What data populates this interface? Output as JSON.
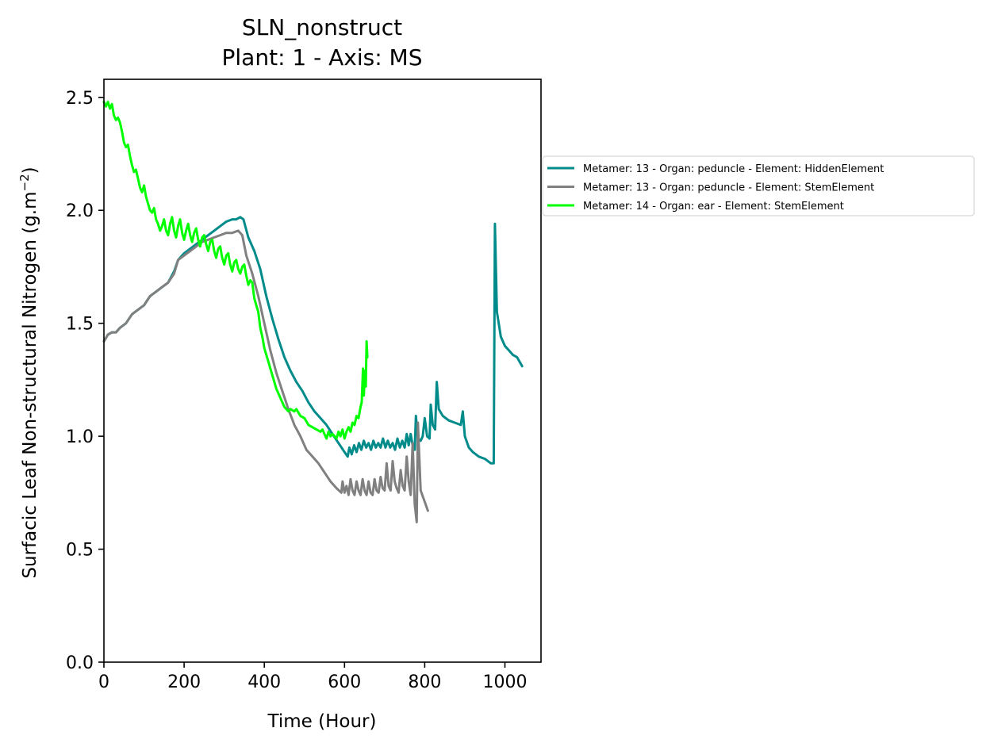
{
  "chart_data": {
    "type": "line",
    "title": "SLN_nonstruct",
    "subtitle": "Plant: 1 - Axis: MS",
    "xlabel": "Time (Hour)",
    "ylabel": "Surfacic Leaf Non-structural Nitrogen (g.m",
    "ylabel_superscript": "−2",
    "ylabel_suffix": ")",
    "xlim": [
      0,
      1090
    ],
    "ylim": [
      0,
      2.58
    ],
    "xticks": [
      0,
      200,
      400,
      600,
      800,
      1000
    ],
    "xtick_labels": [
      "0",
      "200",
      "400",
      "600",
      "800",
      "1000"
    ],
    "yticks": [
      0,
      0.5,
      1.0,
      1.5,
      2.0,
      2.5
    ],
    "ytick_labels": [
      "0.0",
      "0.5",
      "1.0",
      "1.5",
      "2.0",
      "2.5"
    ],
    "legend_position": "outside-right",
    "series": [
      {
        "name": "Metamer: 13 - Organ: peduncle - Element: HiddenElement",
        "color": "#008b8b",
        "points": [
          [
            0,
            1.42
          ],
          [
            10,
            1.45
          ],
          [
            20,
            1.46
          ],
          [
            30,
            1.46
          ],
          [
            40,
            1.48
          ],
          [
            55,
            1.5
          ],
          [
            70,
            1.54
          ],
          [
            85,
            1.56
          ],
          [
            100,
            1.58
          ],
          [
            115,
            1.62
          ],
          [
            130,
            1.64
          ],
          [
            145,
            1.66
          ],
          [
            160,
            1.68
          ],
          [
            175,
            1.73
          ],
          [
            185,
            1.78
          ],
          [
            200,
            1.81
          ],
          [
            215,
            1.83
          ],
          [
            230,
            1.85
          ],
          [
            245,
            1.87
          ],
          [
            260,
            1.89
          ],
          [
            275,
            1.91
          ],
          [
            290,
            1.93
          ],
          [
            305,
            1.95
          ],
          [
            320,
            1.96
          ],
          [
            330,
            1.96
          ],
          [
            340,
            1.97
          ],
          [
            348,
            1.96
          ],
          [
            360,
            1.88
          ],
          [
            375,
            1.82
          ],
          [
            390,
            1.74
          ],
          [
            405,
            1.62
          ],
          [
            420,
            1.52
          ],
          [
            435,
            1.43
          ],
          [
            450,
            1.35
          ],
          [
            465,
            1.29
          ],
          [
            480,
            1.24
          ],
          [
            495,
            1.2
          ],
          [
            510,
            1.15
          ],
          [
            525,
            1.11
          ],
          [
            540,
            1.08
          ],
          [
            555,
            1.05
          ],
          [
            570,
            1.01
          ],
          [
            585,
            0.97
          ],
          [
            600,
            0.93
          ],
          [
            608,
            0.91
          ],
          [
            612,
            0.95
          ],
          [
            618,
            0.92
          ],
          [
            624,
            0.96
          ],
          [
            630,
            0.93
          ],
          [
            636,
            0.97
          ],
          [
            642,
            0.94
          ],
          [
            648,
            0.98
          ],
          [
            654,
            0.95
          ],
          [
            660,
            0.97
          ],
          [
            666,
            0.94
          ],
          [
            672,
            0.98
          ],
          [
            678,
            0.95
          ],
          [
            684,
            0.97
          ],
          [
            690,
            0.95
          ],
          [
            696,
            0.99
          ],
          [
            702,
            0.95
          ],
          [
            708,
            0.98
          ],
          [
            714,
            0.95
          ],
          [
            720,
            0.97
          ],
          [
            726,
            0.94
          ],
          [
            732,
            0.99
          ],
          [
            738,
            0.95
          ],
          [
            744,
            0.98
          ],
          [
            750,
            0.95
          ],
          [
            755,
            1.01
          ],
          [
            760,
            0.96
          ],
          [
            765,
            1.01
          ],
          [
            770,
            0.96
          ],
          [
            775,
            0.94
          ],
          [
            778,
            1.09
          ],
          [
            783,
            0.99
          ],
          [
            790,
            0.98
          ],
          [
            795,
            1.0
          ],
          [
            800,
            1.08
          ],
          [
            806,
            1.0
          ],
          [
            812,
            0.99
          ],
          [
            815,
            1.14
          ],
          [
            820,
            1.05
          ],
          [
            826,
            1.03
          ],
          [
            830,
            1.24
          ],
          [
            835,
            1.12
          ],
          [
            845,
            1.09
          ],
          [
            860,
            1.07
          ],
          [
            875,
            1.06
          ],
          [
            890,
            1.05
          ],
          [
            895,
            1.11
          ],
          [
            900,
            1.0
          ],
          [
            910,
            0.95
          ],
          [
            920,
            0.93
          ],
          [
            935,
            0.91
          ],
          [
            950,
            0.9
          ],
          [
            965,
            0.88
          ],
          [
            972,
            0.88
          ],
          [
            975,
            1.94
          ],
          [
            980,
            1.55
          ],
          [
            990,
            1.44
          ],
          [
            1000,
            1.4
          ],
          [
            1010,
            1.38
          ],
          [
            1020,
            1.36
          ],
          [
            1030,
            1.35
          ],
          [
            1043,
            1.31
          ]
        ]
      },
      {
        "name": "Metamer: 13 - Organ: peduncle - Element: StemElement",
        "color": "#808080",
        "points": [
          [
            0,
            1.42
          ],
          [
            10,
            1.45
          ],
          [
            20,
            1.46
          ],
          [
            30,
            1.46
          ],
          [
            40,
            1.48
          ],
          [
            55,
            1.5
          ],
          [
            70,
            1.54
          ],
          [
            85,
            1.56
          ],
          [
            100,
            1.58
          ],
          [
            115,
            1.62
          ],
          [
            130,
            1.64
          ],
          [
            145,
            1.66
          ],
          [
            160,
            1.68
          ],
          [
            175,
            1.72
          ],
          [
            185,
            1.78
          ],
          [
            200,
            1.8
          ],
          [
            215,
            1.82
          ],
          [
            230,
            1.84
          ],
          [
            245,
            1.86
          ],
          [
            260,
            1.87
          ],
          [
            275,
            1.88
          ],
          [
            290,
            1.89
          ],
          [
            305,
            1.9
          ],
          [
            320,
            1.9
          ],
          [
            335,
            1.91
          ],
          [
            345,
            1.89
          ],
          [
            355,
            1.8
          ],
          [
            370,
            1.72
          ],
          [
            385,
            1.62
          ],
          [
            400,
            1.5
          ],
          [
            415,
            1.38
          ],
          [
            430,
            1.28
          ],
          [
            445,
            1.2
          ],
          [
            460,
            1.12
          ],
          [
            475,
            1.05
          ],
          [
            490,
            1.0
          ],
          [
            505,
            0.94
          ],
          [
            520,
            0.91
          ],
          [
            535,
            0.88
          ],
          [
            550,
            0.84
          ],
          [
            565,
            0.8
          ],
          [
            580,
            0.77
          ],
          [
            592,
            0.75
          ],
          [
            595,
            0.8
          ],
          [
            600,
            0.75
          ],
          [
            605,
            0.78
          ],
          [
            610,
            0.74
          ],
          [
            615,
            0.81
          ],
          [
            620,
            0.76
          ],
          [
            625,
            0.74
          ],
          [
            630,
            0.8
          ],
          [
            635,
            0.76
          ],
          [
            640,
            0.74
          ],
          [
            645,
            0.81
          ],
          [
            650,
            0.76
          ],
          [
            655,
            0.74
          ],
          [
            660,
            0.8
          ],
          [
            665,
            0.75
          ],
          [
            670,
            0.74
          ],
          [
            675,
            0.81
          ],
          [
            680,
            0.76
          ],
          [
            685,
            0.75
          ],
          [
            690,
            0.82
          ],
          [
            695,
            0.77
          ],
          [
            700,
            0.76
          ],
          [
            705,
            0.88
          ],
          [
            710,
            0.78
          ],
          [
            715,
            0.76
          ],
          [
            720,
            0.89
          ],
          [
            725,
            0.8
          ],
          [
            730,
            0.77
          ],
          [
            735,
            0.75
          ],
          [
            740,
            0.85
          ],
          [
            745,
            0.78
          ],
          [
            750,
            0.76
          ],
          [
            755,
            0.91
          ],
          [
            760,
            0.8
          ],
          [
            765,
            0.74
          ],
          [
            770,
            0.97
          ],
          [
            775,
            0.7
          ],
          [
            780,
            0.62
          ],
          [
            783,
            1.06
          ],
          [
            790,
            0.76
          ],
          [
            800,
            0.71
          ],
          [
            808,
            0.67
          ]
        ]
      },
      {
        "name": "Metamer: 14 - Organ: ear - Element: StemElement",
        "color": "#00ff00",
        "points": [
          [
            0,
            2.48
          ],
          [
            5,
            2.46
          ],
          [
            10,
            2.48
          ],
          [
            15,
            2.45
          ],
          [
            20,
            2.47
          ],
          [
            25,
            2.42
          ],
          [
            30,
            2.4
          ],
          [
            35,
            2.41
          ],
          [
            40,
            2.39
          ],
          [
            45,
            2.35
          ],
          [
            50,
            2.3
          ],
          [
            55,
            2.28
          ],
          [
            60,
            2.29
          ],
          [
            65,
            2.24
          ],
          [
            70,
            2.2
          ],
          [
            75,
            2.17
          ],
          [
            80,
            2.18
          ],
          [
            85,
            2.14
          ],
          [
            90,
            2.1
          ],
          [
            95,
            2.08
          ],
          [
            100,
            2.11
          ],
          [
            105,
            2.06
          ],
          [
            110,
            2.03
          ],
          [
            115,
            2.0
          ],
          [
            120,
            1.99
          ],
          [
            125,
            2.01
          ],
          [
            130,
            1.96
          ],
          [
            135,
            1.94
          ],
          [
            140,
            1.91
          ],
          [
            145,
            1.93
          ],
          [
            150,
            1.96
          ],
          [
            155,
            1.91
          ],
          [
            160,
            1.89
          ],
          [
            165,
            1.94
          ],
          [
            170,
            1.97
          ],
          [
            175,
            1.91
          ],
          [
            180,
            1.88
          ],
          [
            185,
            1.93
          ],
          [
            190,
            1.96
          ],
          [
            195,
            1.9
          ],
          [
            200,
            1.87
          ],
          [
            205,
            1.91
          ],
          [
            210,
            1.94
          ],
          [
            215,
            1.89
          ],
          [
            220,
            1.86
          ],
          [
            225,
            1.9
          ],
          [
            230,
            1.92
          ],
          [
            235,
            1.87
          ],
          [
            240,
            1.84
          ],
          [
            245,
            1.88
          ],
          [
            250,
            1.89
          ],
          [
            255,
            1.85
          ],
          [
            260,
            1.82
          ],
          [
            265,
            1.86
          ],
          [
            270,
            1.87
          ],
          [
            275,
            1.82
          ],
          [
            280,
            1.79
          ],
          [
            285,
            1.83
          ],
          [
            290,
            1.84
          ],
          [
            295,
            1.79
          ],
          [
            300,
            1.76
          ],
          [
            305,
            1.8
          ],
          [
            310,
            1.81
          ],
          [
            315,
            1.76
          ],
          [
            320,
            1.73
          ],
          [
            325,
            1.77
          ],
          [
            330,
            1.78
          ],
          [
            335,
            1.74
          ],
          [
            340,
            1.72
          ],
          [
            345,
            1.75
          ],
          [
            350,
            1.76
          ],
          [
            355,
            1.71
          ],
          [
            360,
            1.67
          ],
          [
            365,
            1.69
          ],
          [
            370,
            1.68
          ],
          [
            375,
            1.61
          ],
          [
            380,
            1.58
          ],
          [
            385,
            1.55
          ],
          [
            390,
            1.48
          ],
          [
            395,
            1.44
          ],
          [
            400,
            1.39
          ],
          [
            410,
            1.33
          ],
          [
            420,
            1.27
          ],
          [
            430,
            1.21
          ],
          [
            440,
            1.17
          ],
          [
            450,
            1.13
          ],
          [
            460,
            1.11
          ],
          [
            465,
            1.12
          ],
          [
            475,
            1.11
          ],
          [
            480,
            1.12
          ],
          [
            490,
            1.09
          ],
          [
            500,
            1.08
          ],
          [
            510,
            1.05
          ],
          [
            520,
            1.04
          ],
          [
            530,
            1.03
          ],
          [
            540,
            1.02
          ],
          [
            545,
            1.03
          ],
          [
            550,
            1.01
          ],
          [
            555,
            0.99
          ],
          [
            560,
            1.02
          ],
          [
            565,
            1.0
          ],
          [
            570,
            1.01
          ],
          [
            575,
            1.0
          ],
          [
            580,
            0.99
          ],
          [
            585,
            1.02
          ],
          [
            590,
            1.0
          ],
          [
            595,
            1.03
          ],
          [
            600,
            0.99
          ],
          [
            605,
            1.02
          ],
          [
            610,
            1.04
          ],
          [
            615,
            1.02
          ],
          [
            620,
            1.06
          ],
          [
            625,
            1.05
          ],
          [
            630,
            1.09
          ],
          [
            635,
            1.08
          ],
          [
            640,
            1.13
          ],
          [
            643,
            1.15
          ],
          [
            646,
            1.3
          ],
          [
            648,
            1.18
          ],
          [
            651,
            1.29
          ],
          [
            653,
            1.22
          ],
          [
            655,
            1.42
          ],
          [
            657,
            1.35
          ]
        ]
      }
    ]
  }
}
